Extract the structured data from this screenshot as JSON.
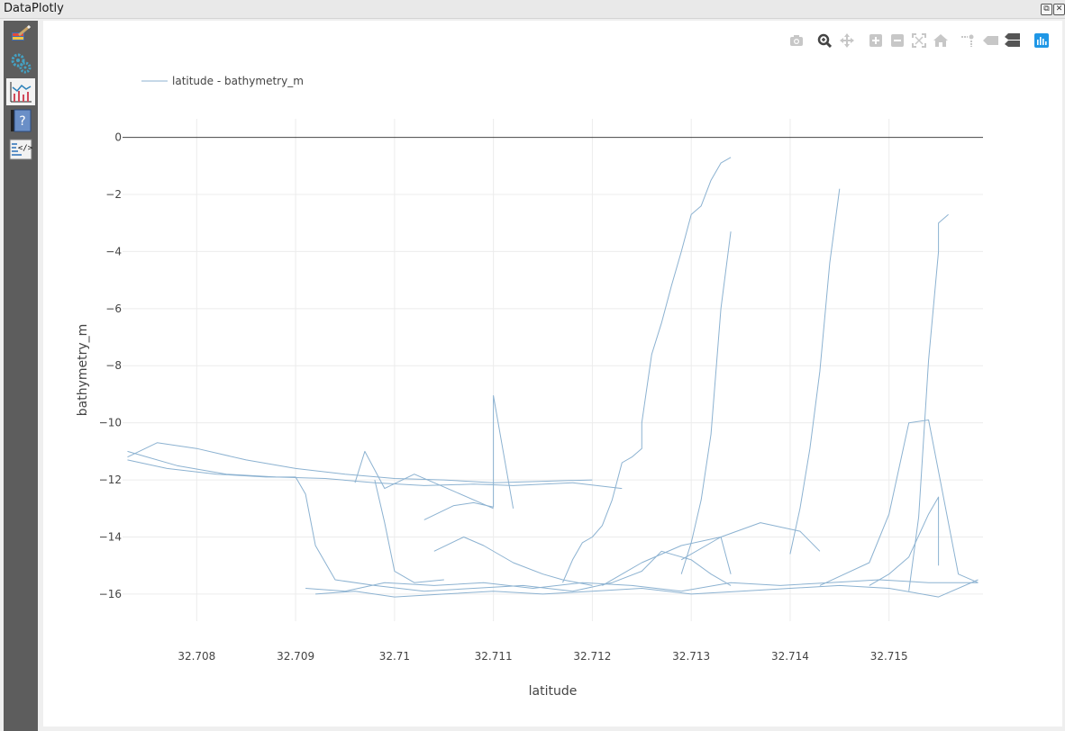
{
  "window": {
    "title": "DataPlotly",
    "restore_label": "⧉",
    "close_label": "✕"
  },
  "sidebar": {
    "items": [
      {
        "name": "plot-settings",
        "icon": "paintbrush-icon",
        "active": false
      },
      {
        "name": "properties",
        "icon": "gears-icon",
        "active": false
      },
      {
        "name": "plot-view",
        "icon": "chart-icon",
        "active": true
      },
      {
        "name": "help",
        "icon": "help-icon",
        "active": false
      },
      {
        "name": "raw-plot",
        "icon": "code-icon",
        "active": false
      }
    ]
  },
  "toolbar": {
    "buttons": [
      "camera-icon",
      "zoom-icon",
      "pan-icon",
      "zoom-in-icon",
      "zoom-out-icon",
      "autoscale-icon",
      "home-icon",
      "spike-lines-icon",
      "hover-closest-icon",
      "hover-compare-icon",
      "plotly-logo-icon"
    ]
  },
  "colors": {
    "line": "#8cb2d1",
    "grid": "#ececec",
    "zeroline": "#444444",
    "active": "#1f97e6"
  },
  "chart_data": {
    "type": "line",
    "title": "",
    "legend": {
      "label": "latitude - bathymetry_m",
      "position": "top-left"
    },
    "xlabel": "latitude",
    "ylabel": "bathymetry_m",
    "xlim": [
      32.70725,
      32.71595
    ],
    "ylim": [
      -16.95,
      0.65
    ],
    "xticks": [
      {
        "value": 32.708,
        "label": "32.708"
      },
      {
        "value": 32.709,
        "label": "32.709"
      },
      {
        "value": 32.71,
        "label": "32.71"
      },
      {
        "value": 32.711,
        "label": "32.711"
      },
      {
        "value": 32.712,
        "label": "32.712"
      },
      {
        "value": 32.713,
        "label": "32.713"
      },
      {
        "value": 32.714,
        "label": "32.714"
      },
      {
        "value": 32.715,
        "label": "32.715"
      }
    ],
    "yticks": [
      {
        "value": 0,
        "label": "0"
      },
      {
        "value": -2,
        "label": "−2"
      },
      {
        "value": -4,
        "label": "−4"
      },
      {
        "value": -6,
        "label": "−6"
      },
      {
        "value": -8,
        "label": "−8"
      },
      {
        "value": -10,
        "label": "−10"
      },
      {
        "value": -12,
        "label": "−12"
      },
      {
        "value": -14,
        "label": "−14"
      },
      {
        "value": -16,
        "label": "−16"
      }
    ],
    "series": [
      {
        "name": "latitude - bathymetry_m",
        "segments": [
          {
            "x": [
              32.7073,
              32.7076,
              32.708,
              32.7085,
              32.709,
              32.7095,
              32.71,
              32.7105,
              32.711,
              32.7115,
              32.712
            ],
            "y": [
              -11.2,
              -10.7,
              -10.9,
              -11.3,
              -11.6,
              -11.8,
              -11.95,
              -12.0,
              -12.1,
              -12.05,
              -12.0
            ]
          },
          {
            "x": [
              32.7073,
              32.7078,
              32.7083,
              32.7088,
              32.7093,
              32.7098,
              32.7103,
              32.7108,
              32.7112,
              32.7118,
              32.7123
            ],
            "y": [
              -11.0,
              -11.5,
              -11.8,
              -11.9,
              -11.95,
              -12.1,
              -12.2,
              -12.15,
              -12.2,
              -12.1,
              -12.3
            ]
          },
          {
            "x": [
              32.7073,
              32.7077,
              32.7082,
              32.7087,
              32.709,
              32.7091,
              32.7092,
              32.7094,
              32.7098,
              32.7103,
              32.7108,
              32.7113,
              32.7118,
              32.7122,
              32.7125,
              32.7127,
              32.713,
              32.7132,
              32.7134
            ],
            "y": [
              -11.3,
              -11.6,
              -11.8,
              -11.9,
              -11.9,
              -12.5,
              -14.3,
              -15.5,
              -15.7,
              -15.9,
              -15.8,
              -15.7,
              -15.9,
              -15.6,
              -15.2,
              -14.5,
              -14.8,
              -15.3,
              -15.7
            ]
          },
          {
            "x": [
              32.7091,
              32.7095,
              32.7099,
              32.7104,
              32.7109,
              32.7114,
              32.7119,
              32.7124,
              32.7129,
              32.7134,
              32.7139,
              32.7144,
              32.7149,
              32.7154,
              32.7159
            ],
            "y": [
              -15.8,
              -15.9,
              -15.6,
              -15.7,
              -15.6,
              -15.8,
              -15.6,
              -15.7,
              -15.9,
              -15.6,
              -15.7,
              -15.6,
              -15.5,
              -15.6,
              -15.6
            ]
          },
          {
            "x": [
              32.7092,
              32.7096,
              32.71,
              32.7105,
              32.711,
              32.7115,
              32.712,
              32.7125,
              32.713,
              32.7135,
              32.714,
              32.7145,
              32.715,
              32.7155,
              32.7159
            ],
            "y": [
              -16.0,
              -15.9,
              -16.1,
              -16.0,
              -15.9,
              -16.0,
              -15.9,
              -15.8,
              -16.0,
              -15.9,
              -15.8,
              -15.7,
              -15.8,
              -16.1,
              -15.5
            ]
          },
          {
            "x": [
              32.7096,
              32.7097,
              32.7099,
              32.7102,
              32.7106,
              32.711
            ],
            "y": [
              -12.1,
              -11.0,
              -12.3,
              -11.8,
              -12.4,
              -13.0
            ]
          },
          {
            "x": [
              32.7098,
              32.7099,
              32.71,
              32.7102,
              32.7105
            ],
            "y": [
              -12.0,
              -13.5,
              -15.2,
              -15.6,
              -15.5
            ]
          },
          {
            "x": [
              32.7103,
              32.7106,
              32.7108,
              32.711,
              32.711,
              32.7112
            ],
            "y": [
              -13.4,
              -12.9,
              -12.8,
              -12.95,
              -9.05,
              -13.0
            ]
          },
          {
            "x": [
              32.7104,
              32.7107,
              32.7109,
              32.7112,
              32.7115,
              32.7117,
              32.712
            ],
            "y": [
              -14.5,
              -14.0,
              -14.3,
              -14.9,
              -15.3,
              -15.5,
              -15.7
            ]
          },
          {
            "x": [
              32.7117,
              32.7118,
              32.7119,
              32.712,
              32.7121,
              32.7122,
              32.7123,
              32.7124,
              32.7125,
              32.7125,
              32.7126,
              32.7127,
              32.7128,
              32.7129,
              32.713,
              32.7131,
              32.7132,
              32.7133,
              32.7134
            ],
            "y": [
              -15.6,
              -14.8,
              -14.2,
              -14.0,
              -13.6,
              -12.7,
              -11.4,
              -11.2,
              -10.9,
              -10.0,
              -7.6,
              -6.5,
              -5.2,
              -4.0,
              -2.7,
              -2.4,
              -1.5,
              -0.9,
              -0.7
            ]
          },
          {
            "x": [
              32.7121,
              32.7125,
              32.7129,
              32.7133,
              32.7134
            ],
            "y": [
              -15.7,
              -14.9,
              -14.3,
              -14.0,
              -15.3
            ]
          },
          {
            "x": [
              32.7129,
              32.713,
              32.7131,
              32.7132,
              32.7133,
              32.7134
            ],
            "y": [
              -15.3,
              -14.2,
              -12.7,
              -10.4,
              -6.0,
              -3.3
            ]
          },
          {
            "x": [
              32.7129,
              32.7133,
              32.7137,
              32.7141,
              32.7143
            ],
            "y": [
              -14.8,
              -14.0,
              -13.5,
              -13.8,
              -14.5
            ]
          },
          {
            "x": [
              32.714,
              32.7141,
              32.7142,
              32.7143,
              32.7144,
              32.7145
            ],
            "y": [
              -14.6,
              -13.0,
              -10.9,
              -8.2,
              -4.4,
              -1.8
            ]
          },
          {
            "x": [
              32.7143,
              32.7148,
              32.715,
              32.7152,
              32.7154,
              32.7157,
              32.7159
            ],
            "y": [
              -15.7,
              -14.9,
              -13.2,
              -10.0,
              -9.9,
              -15.3,
              -15.6
            ]
          },
          {
            "x": [
              32.7152,
              32.7153,
              32.7154,
              32.7155,
              32.7155,
              32.7156
            ],
            "y": [
              -15.9,
              -13.3,
              -7.8,
              -4.0,
              -3.0,
              -2.7
            ]
          },
          {
            "x": [
              32.7148,
              32.715,
              32.7152,
              32.7154,
              32.7155,
              32.7155
            ],
            "y": [
              -15.7,
              -15.3,
              -14.7,
              -13.2,
              -12.6,
              -15.0
            ]
          }
        ]
      }
    ]
  }
}
